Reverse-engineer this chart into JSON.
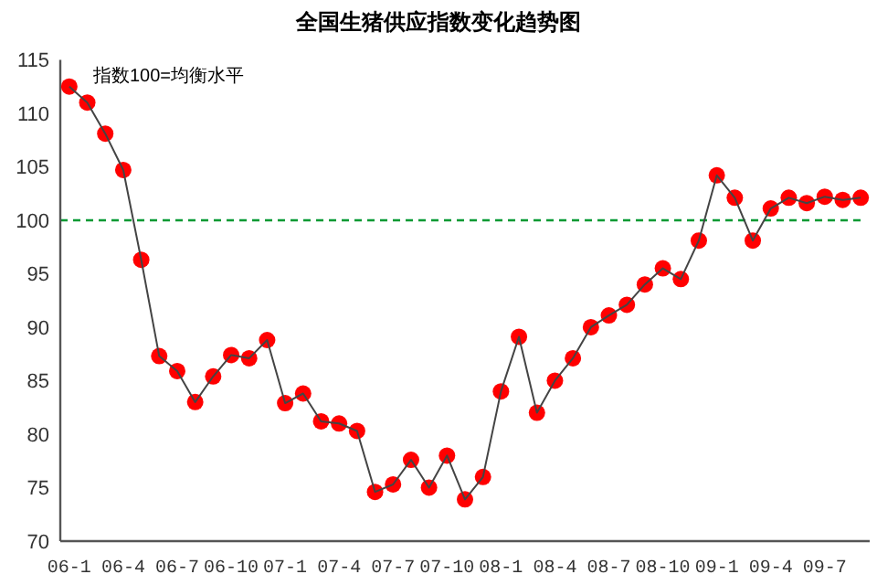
{
  "chart_data": {
    "type": "line",
    "title": "全国生猪供应指数变化趋势图",
    "annotations": [
      "指数100=均衡水平"
    ],
    "categories": [
      "06-1",
      null,
      null,
      "06-4",
      null,
      null,
      "06-7",
      null,
      null,
      "06-10",
      null,
      null,
      "07-1",
      null,
      null,
      "07-4",
      null,
      null,
      "07-7",
      null,
      null,
      "07-10",
      null,
      null,
      "08-1",
      null,
      null,
      "08-4",
      null,
      null,
      "08-7",
      null,
      null,
      "08-10",
      null,
      null,
      "09-1",
      null,
      null,
      "09-4",
      null,
      null,
      "09-7",
      null,
      null
    ],
    "series": [
      {
        "color": "#ff0000",
        "values": [
          112.5,
          111.0,
          108.1,
          104.7,
          96.3,
          87.3,
          85.9,
          83.0,
          85.4,
          87.4,
          87.1,
          88.8,
          82.9,
          83.8,
          81.2,
          81.0,
          80.3,
          74.6,
          75.3,
          77.6,
          75.0,
          78.0,
          73.9,
          76.0,
          84.0,
          89.1,
          82.0,
          85.0,
          87.1,
          90.0,
          91.1,
          92.1,
          94.0,
          95.5,
          94.5,
          98.1,
          104.2,
          102.1,
          98.1,
          101.1,
          102.1,
          101.6,
          102.2,
          101.9,
          102.1
        ]
      }
    ],
    "ylim": [
      70,
      115
    ],
    "yticks": [
      70,
      75,
      80,
      85,
      90,
      95,
      100,
      105,
      110,
      115
    ],
    "ref_lines": [
      {
        "axis": "y",
        "value": 100,
        "color": "#009933",
        "line_style": "dashed"
      }
    ],
    "marker": "circle",
    "line_style": "solid",
    "grid": false
  }
}
